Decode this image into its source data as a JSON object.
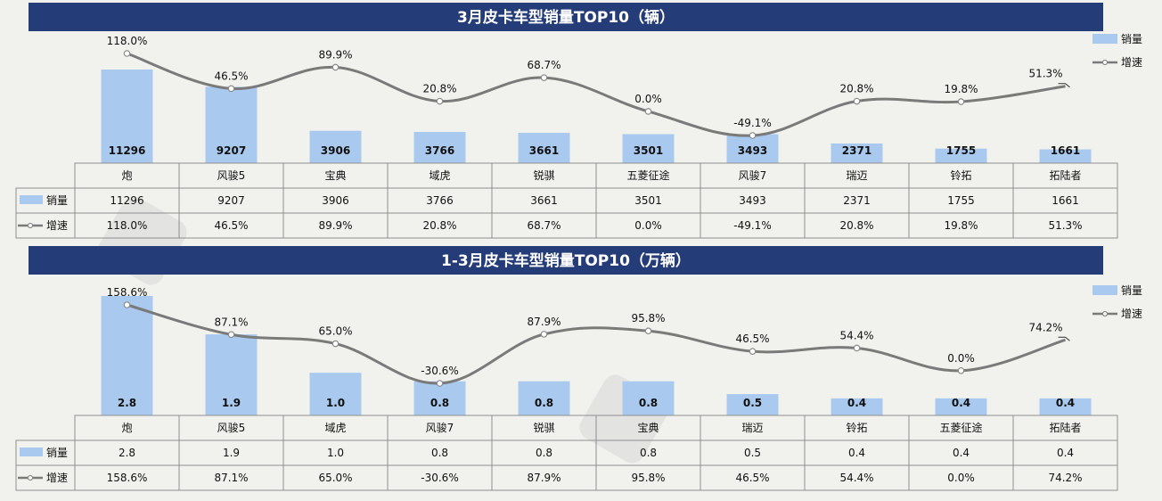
{
  "colors": {
    "title_bg": "#243c78",
    "title_fg": "#ffffff",
    "bar": "#a9c9ef",
    "line": "#7a7a7a",
    "background": "#f1f2ee"
  },
  "legend": {
    "sales_label": "销量",
    "growth_label": "增速"
  },
  "table_row_labels": {
    "sales": "销量",
    "growth": "增速"
  },
  "chart_data": [
    {
      "type": "bar",
      "title": "3月皮卡车型销量TOP10（辆）",
      "categories": [
        "炮",
        "风骏5",
        "宝典",
        "域虎",
        "锐骐",
        "五菱征途",
        "风骏7",
        "瑞迈",
        "铃拓",
        "拓陆者"
      ],
      "series": [
        {
          "name": "销量",
          "type": "bar",
          "values": [
            11296,
            9207,
            3906,
            3766,
            3661,
            3501,
            3493,
            2371,
            1755,
            1661
          ],
          "labels": [
            "11296",
            "9207",
            "3906",
            "3766",
            "3661",
            "3501",
            "3493",
            "2371",
            "1755",
            "1661"
          ]
        },
        {
          "name": "增速",
          "type": "line",
          "values": [
            118.0,
            46.5,
            89.9,
            20.8,
            68.7,
            0.0,
            -49.1,
            20.8,
            19.8,
            51.3
          ],
          "labels": [
            "118.0%",
            "46.5%",
            "89.9%",
            "20.8%",
            "68.7%",
            "0.0%",
            "-49.1%",
            "20.8%",
            "19.8%",
            "51.3%"
          ]
        }
      ],
      "legend_position": "top-right",
      "grid": false
    },
    {
      "type": "bar",
      "title": "1-3月皮卡车型销量TOP10（万辆）",
      "categories": [
        "炮",
        "风骏5",
        "域虎",
        "风骏7",
        "锐骐",
        "宝典",
        "瑞迈",
        "铃拓",
        "五菱征途",
        "拓陆者"
      ],
      "series": [
        {
          "name": "销量",
          "type": "bar",
          "values": [
            2.8,
            1.9,
            1.0,
            0.8,
            0.8,
            0.8,
            0.5,
            0.4,
            0.4,
            0.4
          ],
          "labels": [
            "2.8",
            "1.9",
            "1.0",
            "0.8",
            "0.8",
            "0.8",
            "0.5",
            "0.4",
            "0.4",
            "0.4"
          ]
        },
        {
          "name": "增速",
          "type": "line",
          "values": [
            158.6,
            87.1,
            65.0,
            -30.6,
            87.9,
            95.8,
            46.5,
            54.4,
            0.0,
            74.2
          ],
          "labels": [
            "158.6%",
            "87.1%",
            "65.0%",
            "-30.6%",
            "87.9%",
            "95.8%",
            "46.5%",
            "54.4%",
            "0.0%",
            "74.2%"
          ]
        }
      ],
      "legend_position": "top-right",
      "grid": false
    }
  ]
}
